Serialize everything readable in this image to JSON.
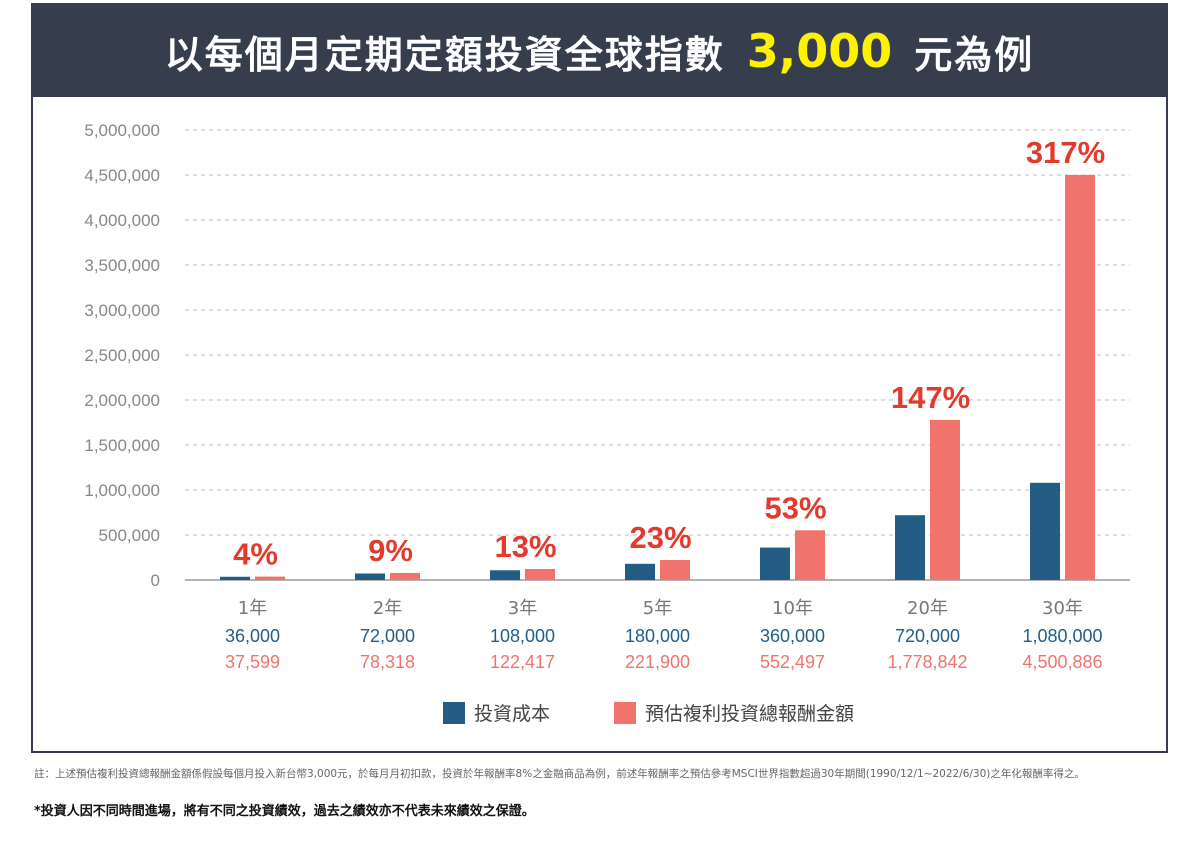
{
  "title": {
    "prefix": "以每個月定期定額投資全球指數",
    "amount": "3,000",
    "suffix": "元為例"
  },
  "colors": {
    "banner": "#363d4d",
    "amount": "#fff200",
    "cost": "#235d85",
    "return": "#f0746c",
    "pct": "#e23b2e"
  },
  "chart_data": {
    "type": "bar",
    "categories": [
      "1年",
      "2年",
      "3年",
      "5年",
      "10年",
      "20年",
      "30年"
    ],
    "cost_labels": [
      "36,000",
      "72,000",
      "108,000",
      "180,000",
      "360,000",
      "720,000",
      "1,080,000"
    ],
    "return_labels": [
      "37,599",
      "78,318",
      "122,417",
      "221,900",
      "552,497",
      "1,778,842",
      "4,500,886"
    ],
    "pct_labels": [
      "4%",
      "9%",
      "13%",
      "23%",
      "53%",
      "147%",
      "317%"
    ],
    "series": [
      {
        "name": "投資成本",
        "values": [
          36000,
          72000,
          108000,
          180000,
          360000,
          720000,
          1080000
        ]
      },
      {
        "name": "預估複利投資總報酬金額",
        "values": [
          37599,
          78318,
          122417,
          221900,
          552497,
          1778842,
          4500886
        ]
      }
    ],
    "ylim": [
      0,
      5000000
    ],
    "yticks": [
      "0",
      "500,000",
      "1,000,000",
      "1,500,000",
      "2,000,000",
      "2,500,000",
      "3,000,000",
      "3,500,000",
      "4,000,000",
      "4,500,000",
      "5,000,000"
    ],
    "grid": true,
    "legend": "bottom"
  },
  "notes": {
    "line1": "註：上述預估複利投資總報酬金額係假設每個月投入新台幣3,000元，於每月月初扣款，投資於年報酬率8%之金融商品為例，前述年報酬率之預估參考MSCI世界指數超過30年期間(1990/12/1~2022/6/30)之年化報酬率得之。",
    "line2": "*投資人因不同時間進場，將有不同之投資績效，過去之績效亦不代表未來績效之保證。"
  }
}
